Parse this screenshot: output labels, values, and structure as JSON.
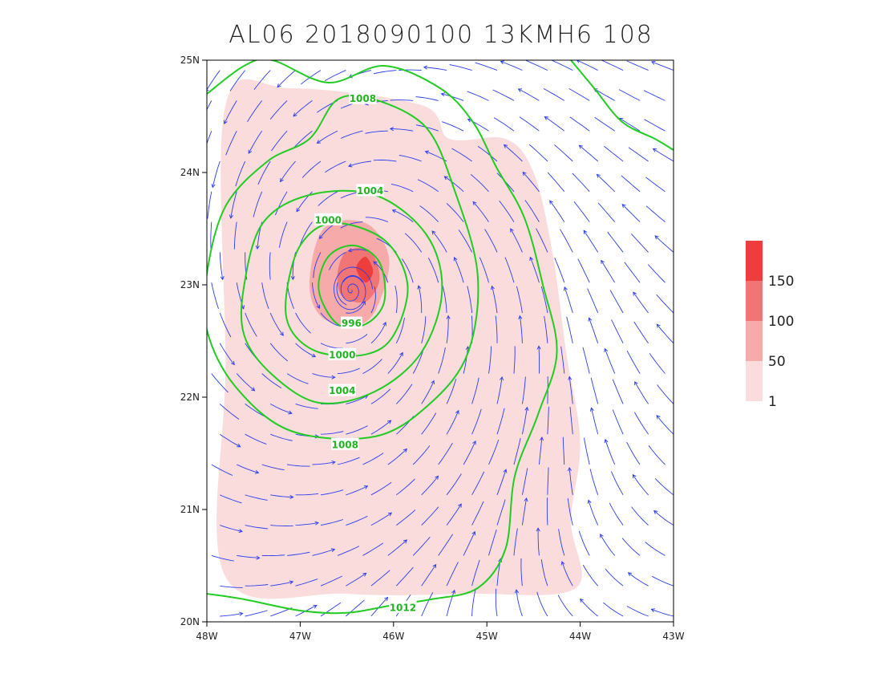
{
  "chart_data": {
    "type": "contour",
    "title": "AL06 2018090100 13KMH6 108",
    "xlabel": "",
    "ylabel": "",
    "xlim": [
      -48,
      -43
    ],
    "ylim": [
      20,
      25
    ],
    "x_ticks": [
      {
        "value": -48,
        "label": "48W"
      },
      {
        "value": -47,
        "label": "47W"
      },
      {
        "value": -46,
        "label": "46W"
      },
      {
        "value": -45,
        "label": "45W"
      },
      {
        "value": -44,
        "label": "44W"
      },
      {
        "value": -43,
        "label": "43W"
      }
    ],
    "y_ticks": [
      {
        "value": 20,
        "label": "20N"
      },
      {
        "value": 21,
        "label": "21N"
      },
      {
        "value": 22,
        "label": "22N"
      },
      {
        "value": 23,
        "label": "23N"
      },
      {
        "value": 24,
        "label": "24N"
      },
      {
        "value": 25,
        "label": "25N"
      }
    ],
    "storm_center": {
      "lon": -46.45,
      "lat": 22.95
    },
    "pressure_contours": [
      {
        "label": "996",
        "value": 996,
        "color": "#22cc22",
        "points": [
          [
            -46.8,
            22.95
          ],
          [
            -46.7,
            23.25
          ],
          [
            -46.42,
            23.35
          ],
          [
            -46.15,
            23.2
          ],
          [
            -46.1,
            22.85
          ],
          [
            -46.3,
            22.65
          ],
          [
            -46.6,
            22.65
          ],
          [
            -46.8,
            22.95
          ]
        ],
        "label_at": [
          -46.45,
          22.66
        ]
      },
      {
        "label": "1000",
        "value": 1000,
        "color": "#22cc22",
        "points": [
          [
            -47.15,
            22.9
          ],
          [
            -47.0,
            23.35
          ],
          [
            -46.65,
            23.55
          ],
          [
            -46.1,
            23.4
          ],
          [
            -45.85,
            23.0
          ],
          [
            -46.0,
            22.55
          ],
          [
            -46.3,
            22.38
          ],
          [
            -46.8,
            22.4
          ],
          [
            -47.1,
            22.6
          ],
          [
            -47.15,
            22.9
          ]
        ],
        "label_at": [
          -46.55,
          22.38
        ],
        "label_at_2": [
          -46.7,
          23.58
        ]
      },
      {
        "label": "1004",
        "value": 1004,
        "color": "#22cc22",
        "points": [
          [
            -47.6,
            23.0
          ],
          [
            -47.4,
            23.55
          ],
          [
            -46.9,
            23.8
          ],
          [
            -46.2,
            23.8
          ],
          [
            -45.65,
            23.45
          ],
          [
            -45.48,
            22.95
          ],
          [
            -45.7,
            22.4
          ],
          [
            -46.2,
            22.05
          ],
          [
            -46.8,
            21.95
          ],
          [
            -47.3,
            22.2
          ],
          [
            -47.6,
            22.55
          ],
          [
            -47.6,
            23.0
          ]
        ],
        "label_at": [
          -46.55,
          22.06
        ],
        "label_at_2": [
          -46.25,
          23.84
        ]
      },
      {
        "label": "1008",
        "value": 1008,
        "color": "#22cc22",
        "points": [
          [
            -48.0,
            23.1
          ],
          [
            -47.8,
            23.7
          ],
          [
            -47.35,
            24.1
          ],
          [
            -46.9,
            24.3
          ],
          [
            -46.6,
            24.65
          ],
          [
            -46.2,
            24.65
          ],
          [
            -45.65,
            24.4
          ],
          [
            -45.35,
            23.85
          ],
          [
            -45.1,
            23.1
          ],
          [
            -45.2,
            22.4
          ],
          [
            -45.6,
            21.95
          ],
          [
            -46.2,
            21.65
          ],
          [
            -47.1,
            21.7
          ],
          [
            -47.7,
            22.1
          ],
          [
            -48.0,
            22.6
          ],
          [
            -48.0,
            23.1
          ]
        ],
        "label_at": [
          -46.52,
          21.58
        ],
        "label_at_2": [
          -46.33,
          24.66
        ]
      },
      {
        "label": "1012",
        "value": 1012,
        "color": "#22cc22",
        "points": [
          [
            -48.0,
            24.7
          ],
          [
            -47.6,
            24.95
          ],
          [
            -47.3,
            25.0
          ],
          [
            -46.7,
            24.8
          ],
          [
            -46.1,
            24.95
          ],
          [
            -45.5,
            24.75
          ],
          [
            -45.15,
            24.45
          ],
          [
            -44.9,
            24.05
          ],
          [
            -44.6,
            23.6
          ],
          [
            -44.4,
            23.0
          ],
          [
            -44.25,
            22.4
          ],
          [
            -44.45,
            21.85
          ],
          [
            -44.7,
            21.3
          ],
          [
            -44.8,
            20.65
          ],
          [
            -45.1,
            20.3
          ],
          [
            -45.6,
            20.2
          ],
          [
            -46.0,
            20.15
          ],
          [
            -46.5,
            20.08
          ],
          [
            -47.0,
            20.1
          ],
          [
            -47.6,
            20.2
          ],
          [
            -48.0,
            20.25
          ]
        ],
        "label_at": [
          -45.9,
          20.13
        ]
      },
      {
        "label": "",
        "value": 1016,
        "color": "#22cc22",
        "points": [
          [
            -44.1,
            25.0
          ],
          [
            -43.85,
            24.75
          ],
          [
            -43.55,
            24.45
          ],
          [
            -43.2,
            24.3
          ],
          [
            -43.0,
            24.2
          ]
        ],
        "label_at": null
      }
    ],
    "shading": {
      "colorbar": {
        "levels": [
          "1",
          "50",
          "100",
          "150"
        ],
        "colors": [
          "#fadcdc",
          "#f7aaaa",
          "#f27575",
          "#ee3d3d"
        ]
      },
      "regions": [
        {
          "level": 1,
          "color": "#fadcdc",
          "points": [
            [
              -47.8,
              24.6
            ],
            [
              -47.1,
              24.75
            ],
            [
              -45.7,
              24.6
            ],
            [
              -45.4,
              24.3
            ],
            [
              -44.8,
              24.3
            ],
            [
              -44.5,
              24.0
            ],
            [
              -44.3,
              23.3
            ],
            [
              -44.15,
              22.4
            ],
            [
              -44.0,
              21.6
            ],
            [
              -44.1,
              20.9
            ],
            [
              -44.05,
              20.3
            ],
            [
              -45.2,
              20.25
            ],
            [
              -46.5,
              20.25
            ],
            [
              -47.8,
              20.4
            ],
            [
              -47.8,
              22.3
            ],
            [
              -47.8,
              24.6
            ]
          ]
        },
        {
          "level": 50,
          "color": "#f7aaaa",
          "points": [
            [
              -46.9,
              23.0
            ],
            [
              -46.75,
              23.5
            ],
            [
              -46.3,
              23.55
            ],
            [
              -46.05,
              23.25
            ],
            [
              -46.15,
              22.85
            ],
            [
              -46.35,
              22.65
            ],
            [
              -46.75,
              22.7
            ],
            [
              -46.9,
              23.0
            ]
          ]
        },
        {
          "level": 100,
          "color": "#f27575",
          "points": [
            [
              -46.6,
              23.1
            ],
            [
              -46.5,
              23.3
            ],
            [
              -46.25,
              23.3
            ],
            [
              -46.15,
              23.05
            ],
            [
              -46.3,
              22.85
            ],
            [
              -46.55,
              22.9
            ],
            [
              -46.6,
              23.1
            ]
          ]
        },
        {
          "level": 150,
          "color": "#ee3d3d",
          "points": [
            [
              -46.4,
              23.15
            ],
            [
              -46.3,
              23.25
            ],
            [
              -46.22,
              23.12
            ],
            [
              -46.3,
              23.02
            ],
            [
              -46.4,
              23.15
            ]
          ]
        }
      ]
    },
    "streamlines": {
      "color": "#2a3df0",
      "pattern": "cyclonic inflow"
    }
  }
}
